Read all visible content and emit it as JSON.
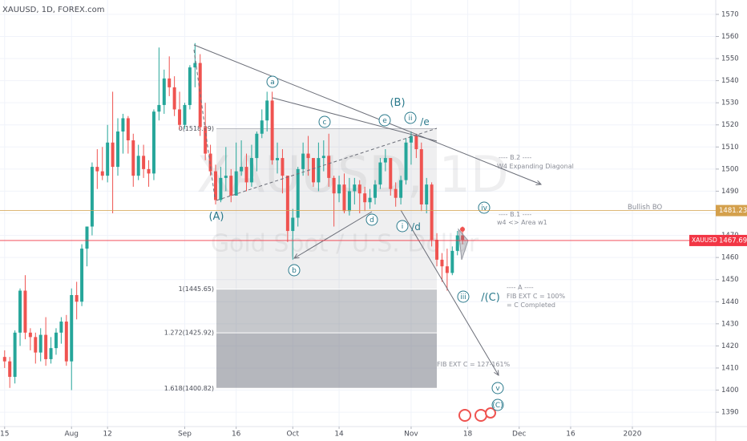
{
  "chart_data": {
    "type": "candlestick",
    "title": "XAUUSD, 1D, FOREX.com",
    "watermark": [
      "XAUUSD, 1D",
      "Gold Spot / U.S. Dollar"
    ],
    "x": [
      0,
      1,
      2,
      3,
      4,
      5,
      6,
      7,
      8,
      9,
      10,
      11,
      12,
      13,
      14,
      15,
      16,
      17,
      18,
      19,
      20,
      21,
      22,
      23,
      24,
      25,
      26,
      27,
      28,
      29,
      30,
      31,
      32,
      33,
      34,
      35,
      36,
      37,
      38,
      39,
      40,
      41,
      42,
      43,
      44,
      45,
      46,
      47,
      48,
      49,
      50,
      51,
      52,
      53,
      54,
      55,
      56,
      57,
      58,
      59,
      60,
      61,
      62,
      63,
      64,
      65,
      66,
      67,
      68,
      69,
      70,
      71,
      72,
      73,
      74,
      75,
      76,
      77,
      78,
      79,
      80,
      81,
      82,
      83,
      84,
      85,
      86,
      87,
      88,
      89
    ],
    "open": [
      1415,
      1413,
      1406,
      1426,
      1445,
      1426,
      1424,
      1417,
      1425,
      1414,
      1419,
      1426,
      1431,
      1413,
      1443,
      1440,
      1464,
      1474,
      1501,
      1499,
      1497,
      1512,
      1501,
      1517,
      1523,
      1513,
      1497,
      1506,
      1500,
      1498,
      1526,
      1529,
      1541,
      1537,
      1527,
      1520,
      1529,
      1546,
      1548,
      1519,
      1507,
      1499,
      1486,
      1496,
      1497,
      1488,
      1499,
      1501,
      1494,
      1505,
      1516,
      1522,
      1531,
      1504,
      1505,
      1497,
      1472,
      1478,
      1500,
      1507,
      1505,
      1494,
      1505,
      1506,
      1496,
      1489,
      1493,
      1481,
      1490,
      1493,
      1489,
      1485,
      1487,
      1493,
      1503,
      1505,
      1491,
      1487,
      1495,
      1512,
      1515,
      1509,
      1484,
      1493,
      1468,
      1459,
      1456,
      1453,
      1463,
      1470
    ],
    "high": [
      1418,
      1415,
      1427,
      1446,
      1452,
      1428,
      1426,
      1428,
      1433,
      1424,
      1428,
      1433,
      1434,
      1446,
      1449,
      1466,
      1474,
      1503,
      1509,
      1510,
      1520,
      1535,
      1523,
      1525,
      1524,
      1516,
      1511,
      1511,
      1504,
      1527,
      1555,
      1545,
      1551,
      1542,
      1535,
      1530,
      1547,
      1557,
      1552,
      1530,
      1511,
      1502,
      1501,
      1510,
      1500,
      1512,
      1513,
      1507,
      1511,
      1517,
      1527,
      1535,
      1535,
      1512,
      1509,
      1497,
      1482,
      1501,
      1512,
      1515,
      1505,
      1512,
      1513,
      1516,
      1497,
      1497,
      1498,
      1496,
      1496,
      1495,
      1492,
      1491,
      1495,
      1505,
      1509,
      1505,
      1494,
      1497,
      1514,
      1517,
      1516,
      1512,
      1496,
      1494,
      1471,
      1462,
      1464,
      1465,
      1472,
      1474
    ],
    "low": [
      1410,
      1401,
      1403,
      1420,
      1423,
      1418,
      1412,
      1413,
      1411,
      1412,
      1416,
      1421,
      1411,
      1400,
      1432,
      1438,
      1456,
      1470,
      1491,
      1495,
      1494,
      1480,
      1497,
      1507,
      1507,
      1492,
      1495,
      1496,
      1492,
      1495,
      1522,
      1525,
      1533,
      1524,
      1518,
      1518,
      1527,
      1537,
      1515,
      1504,
      1497,
      1484,
      1485,
      1490,
      1485,
      1488,
      1497,
      1490,
      1492,
      1499,
      1514,
      1517,
      1502,
      1498,
      1489,
      1467,
      1459,
      1474,
      1497,
      1497,
      1492,
      1490,
      1499,
      1492,
      1474,
      1485,
      1480,
      1479,
      1484,
      1480,
      1481,
      1482,
      1484,
      1491,
      1499,
      1488,
      1483,
      1484,
      1493,
      1502,
      1505,
      1481,
      1480,
      1465,
      1456,
      1449,
      1445,
      1452,
      1461,
      1466
    ],
    "close": [
      1413,
      1406,
      1426,
      1445,
      1426,
      1424,
      1417,
      1425,
      1414,
      1419,
      1426,
      1431,
      1413,
      1443,
      1440,
      1464,
      1474,
      1501,
      1499,
      1497,
      1512,
      1501,
      1517,
      1523,
      1513,
      1497,
      1506,
      1500,
      1498,
      1526,
      1529,
      1541,
      1537,
      1527,
      1520,
      1529,
      1546,
      1548,
      1519,
      1507,
      1499,
      1486,
      1496,
      1497,
      1488,
      1499,
      1501,
      1494,
      1505,
      1516,
      1522,
      1531,
      1504,
      1505,
      1497,
      1472,
      1478,
      1500,
      1507,
      1505,
      1494,
      1505,
      1506,
      1496,
      1489,
      1493,
      1481,
      1490,
      1493,
      1489,
      1485,
      1487,
      1493,
      1503,
      1505,
      1491,
      1487,
      1495,
      1512,
      1515,
      1509,
      1484,
      1493,
      1468,
      1459,
      1456,
      1453,
      1463,
      1470,
      1468
    ],
    "up_color": "#26a69a",
    "down_color": "#ef5350",
    "xlim": [
      -0.9,
      138.2
    ],
    "xticks": [
      {
        "value": 0,
        "label": "15"
      },
      {
        "value": 13,
        "label": "Aug"
      },
      {
        "value": 20,
        "label": "12"
      },
      {
        "value": 35,
        "label": "Sep"
      },
      {
        "value": 45,
        "label": "16"
      },
      {
        "value": 56,
        "label": "Oct"
      },
      {
        "value": 65,
        "label": "14"
      },
      {
        "value": 79,
        "label": "Nov"
      },
      {
        "value": 90,
        "label": "18"
      },
      {
        "value": 100,
        "label": "Dec"
      },
      {
        "value": 110,
        "label": "16"
      },
      {
        "value": 122,
        "label": "2020"
      }
    ],
    "ylim": [
      1383.5,
      1576.5
    ],
    "yticks": [
      1390,
      1400,
      1410,
      1420,
      1430,
      1440,
      1450,
      1460,
      1470,
      1480,
      1490,
      1500,
      1510,
      1520,
      1530,
      1540,
      1550,
      1560,
      1570
    ],
    "grid": true,
    "price_lines": [
      {
        "value": 1481.23,
        "color": "#d4a04c"
      },
      {
        "name": "XAUUSD",
        "value": 1467.69,
        "color": "#f23645"
      }
    ],
    "fib_levels": [
      {
        "value": 1518.29,
        "label": "0(1518.29)"
      },
      {
        "value": 1445.65,
        "label": "1(1445.65)"
      },
      {
        "value": 1425.92,
        "label": "1.272(1425.92)"
      },
      {
        "value": 1400.82,
        "label": "1.618(1400.82)"
      }
    ],
    "annotations": [
      "(A)",
      "a",
      "b",
      "c",
      "d",
      "e",
      "(B)",
      "ii",
      "/e",
      "i",
      "/d",
      "iii",
      "/(C)",
      "iv",
      "v",
      "(C)",
      "---- B.2 ----",
      "W4 Expanding Diagonal",
      "---- B.1 ----",
      "w4 <> Area w1",
      "---- A ----",
      "FIB EXT C = 100%",
      "= C Completed",
      "FIB EXT C = 127-161%",
      "Bullish BO"
    ]
  }
}
